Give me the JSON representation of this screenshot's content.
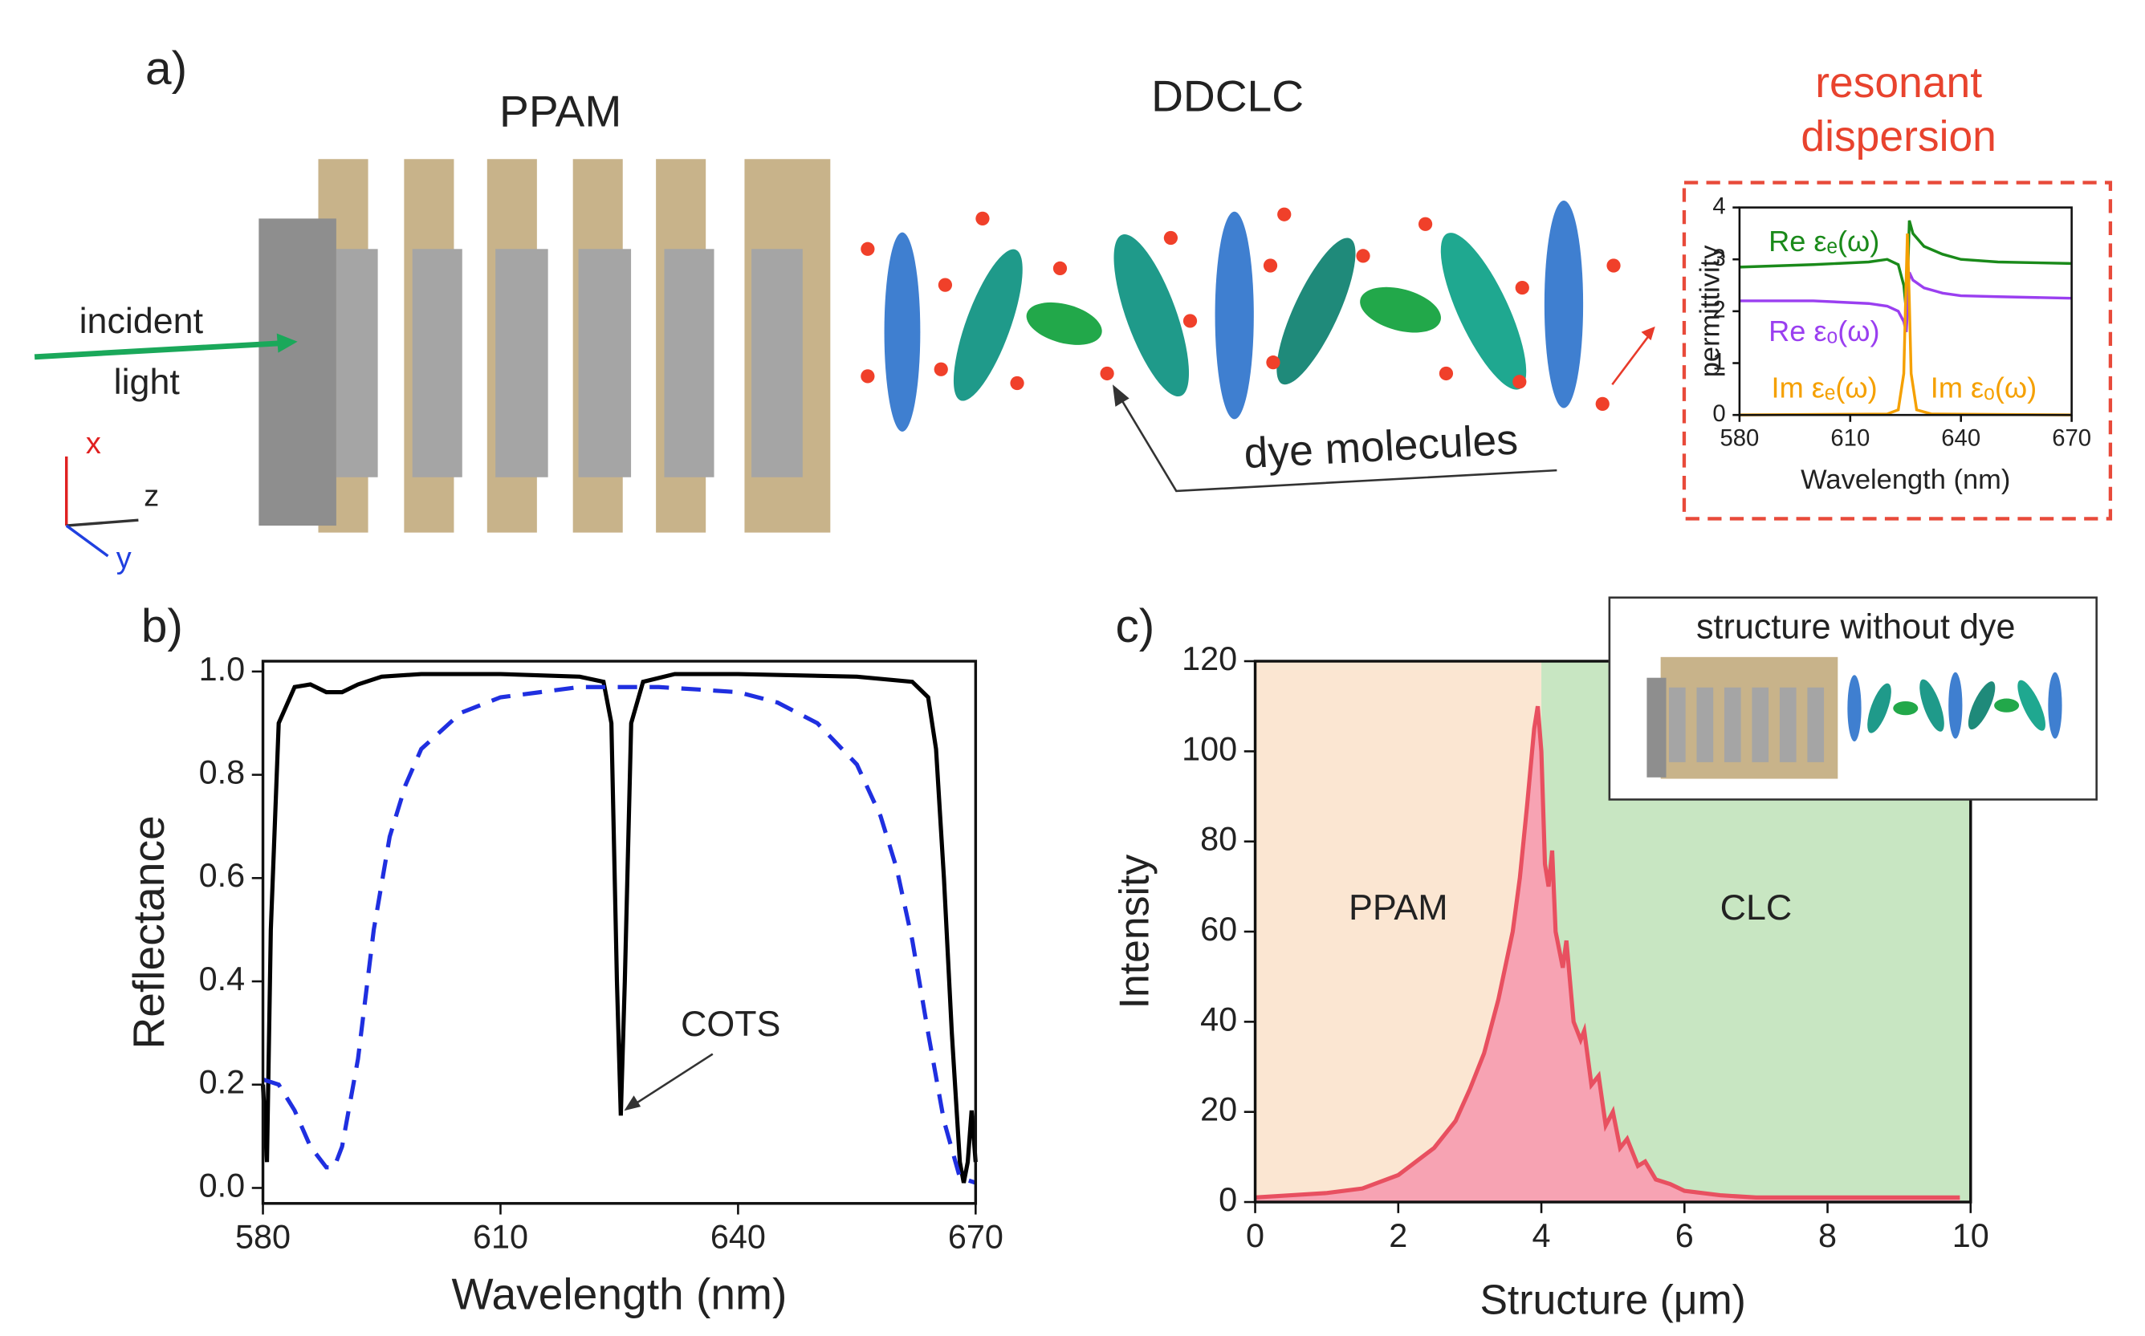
{
  "illustration": {
    "panel_labels": [
      "a)",
      "b)",
      "c)"
    ],
    "ppam": "PPAM",
    "ddclc": "DDCLC",
    "resonant": [
      "resonant",
      "dispersion"
    ],
    "incident": [
      "incident",
      "light"
    ],
    "dye": "dye molecules",
    "axes": [
      "x",
      "z",
      "y"
    ]
  },
  "chart_data": [
    {
      "type": "line",
      "xlabel": "Wavelength (nm)",
      "ylabel": "permittivity",
      "xlim": [
        580,
        670
      ],
      "xticks": [
        580,
        610,
        640,
        670
      ],
      "ylim": [
        0,
        4
      ],
      "yticks": [
        0,
        1,
        2,
        3,
        4
      ],
      "series": [
        {
          "name": "Re εₑ(ω)",
          "color": "#1a8a1a",
          "x": [
            580,
            600,
            615,
            620,
            623,
            624.5,
            625.2,
            625.7,
            626,
            627,
            630,
            635,
            640,
            650,
            670
          ],
          "values": [
            2.85,
            2.9,
            2.95,
            3.0,
            2.9,
            2.5,
            2.0,
            3.0,
            3.75,
            3.5,
            3.25,
            3.1,
            3.0,
            2.95,
            2.92
          ]
        },
        {
          "name": "Re εₒ(ω)",
          "color": "#9a3ff0",
          "x": [
            580,
            600,
            615,
            620,
            623,
            624.5,
            625.2,
            625.7,
            626,
            627,
            630,
            635,
            640,
            650,
            670
          ],
          "values": [
            2.2,
            2.2,
            2.15,
            2.1,
            2.0,
            1.8,
            1.6,
            2.3,
            2.75,
            2.6,
            2.45,
            2.35,
            2.3,
            2.28,
            2.25
          ]
        },
        {
          "color": "#f5a000",
          "x": [
            580,
            620,
            623,
            624.5,
            625,
            625.5,
            626,
            626.5,
            628,
            632,
            670
          ],
          "values": [
            0,
            0.02,
            0.1,
            0.8,
            2.2,
            3.5,
            2.2,
            0.8,
            0.1,
            0.02,
            0
          ]
        }
      ],
      "annotations": [
        "Im εₑ(ω)",
        "Im εₒ(ω)"
      ]
    },
    {
      "type": "line",
      "xlabel": "Wavelength (nm)",
      "ylabel": "Reflectance",
      "xlim": [
        580,
        670
      ],
      "xticks": [
        580,
        610,
        640,
        670
      ],
      "ylim": [
        -0.03,
        1.02
      ],
      "yticks": [
        {
          "value": 0,
          "label": "0.0"
        },
        0.2,
        0.4,
        0.6,
        0.8,
        {
          "value": 1,
          "label": "1.0"
        }
      ],
      "annotations": [
        "COTS"
      ],
      "series": [
        {
          "color": "#000000",
          "style": "solid",
          "x": [
            580,
            580.5,
            581,
            582,
            584,
            586,
            588,
            590,
            592,
            595,
            600,
            610,
            620,
            623,
            624,
            624.7,
            625.2,
            625.7,
            626.5,
            628,
            632,
            640,
            655,
            662,
            664,
            665,
            666,
            667,
            668,
            668.5,
            669,
            669.5,
            670
          ],
          "values": [
            0.2,
            0.05,
            0.5,
            0.9,
            0.97,
            0.975,
            0.96,
            0.96,
            0.975,
            0.99,
            0.995,
            0.995,
            0.99,
            0.98,
            0.9,
            0.4,
            0.14,
            0.4,
            0.9,
            0.98,
            0.995,
            0.995,
            0.99,
            0.98,
            0.95,
            0.85,
            0.6,
            0.3,
            0.05,
            0.01,
            0.05,
            0.15,
            0.05
          ]
        },
        {
          "color": "#1f2fe0",
          "style": "dashed",
          "x": [
            580,
            582,
            584,
            586,
            588,
            589,
            590,
            592,
            594,
            596,
            598,
            600,
            605,
            610,
            615,
            620,
            625,
            630,
            635,
            640,
            645,
            650,
            655,
            658,
            660,
            662,
            664,
            666,
            668,
            670
          ],
          "values": [
            0.21,
            0.2,
            0.15,
            0.08,
            0.04,
            0.04,
            0.08,
            0.25,
            0.5,
            0.68,
            0.78,
            0.85,
            0.92,
            0.95,
            0.96,
            0.97,
            0.97,
            0.97,
            0.965,
            0.96,
            0.94,
            0.9,
            0.82,
            0.72,
            0.62,
            0.48,
            0.3,
            0.13,
            0.02,
            0.01
          ]
        }
      ]
    },
    {
      "type": "area",
      "xlabel": "Structure (μm)",
      "ylabel": "Intensity",
      "xlim": [
        0,
        10
      ],
      "xticks": [
        0,
        2,
        4,
        6,
        8,
        10
      ],
      "ylim": [
        0,
        120
      ],
      "yticks": [
        0,
        20,
        40,
        60,
        80,
        100,
        120
      ],
      "inset_title": "structure without dye",
      "regions": [
        {
          "label": "PPAM",
          "x0": 0,
          "x1": 4,
          "color": "#fbe6d2"
        },
        {
          "label": "CLC",
          "x0": 4,
          "x1": 10,
          "color": "#c8e6c2"
        }
      ],
      "series": [
        {
          "color": "#e85060",
          "fill": "#f7a3b3",
          "x": [
            0,
            0.5,
            1,
            1.5,
            2,
            2.5,
            2.8,
            3,
            3.2,
            3.4,
            3.6,
            3.7,
            3.8,
            3.9,
            3.95,
            4.0,
            4.05,
            4.1,
            4.15,
            4.2,
            4.3,
            4.35,
            4.45,
            4.55,
            4.6,
            4.7,
            4.8,
            4.9,
            5.0,
            5.1,
            5.2,
            5.35,
            5.45,
            5.6,
            5.8,
            6,
            6.5,
            7,
            8,
            9,
            9.85
          ],
          "values": [
            1,
            1.5,
            2,
            3,
            6,
            12,
            18,
            25,
            33,
            45,
            60,
            72,
            88,
            105,
            110,
            100,
            75,
            70,
            78,
            60,
            52,
            58,
            40,
            36,
            38,
            26,
            28,
            17,
            20,
            12,
            14,
            8,
            9,
            5,
            4,
            2.5,
            1.5,
            1,
            1,
            1,
            1
          ]
        }
      ]
    }
  ]
}
